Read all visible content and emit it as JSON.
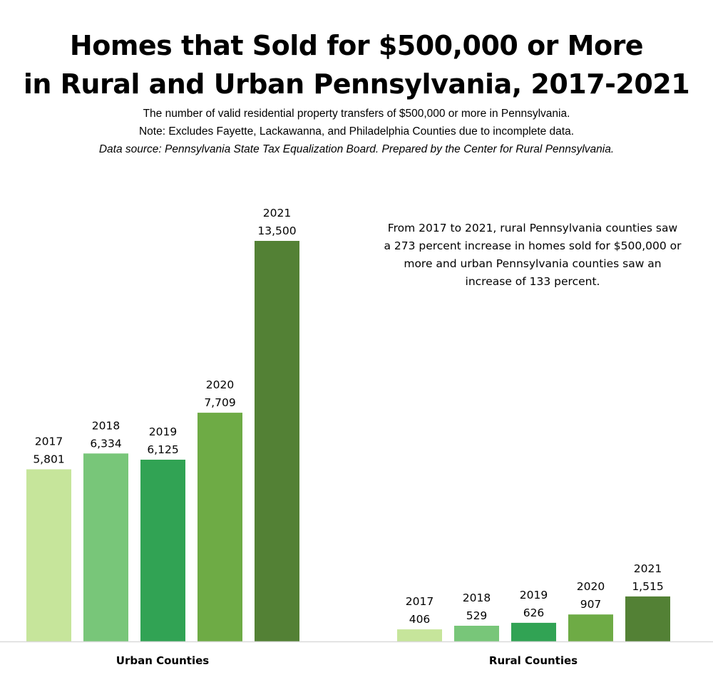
{
  "title_line1": "Homes that Sold for $500,000 or More",
  "title_line2": "in Rural and Urban Pennsylvania, 2017-2021",
  "subtitle_line1": "The number of valid residential property transfers of $500,000 or more in Pennsylvania.",
  "subtitle_line2": "Note: Excludes Fayette, Lackawanna, and Philadelphia Counties due to incomplete data.",
  "source_line": "Data source: Pennsylvania State Tax Equalization Board. Prepared by the Center for Rural Pennsylvania.",
  "annotation": "From 2017 to 2021, rural Pennsylvania counties saw a 273 percent increase in homes sold for $500,000 or more and urban Pennsylvania counties saw an increase of 133 percent.",
  "chart_data": {
    "type": "bar",
    "ylim": [
      0,
      13500
    ],
    "grid": false,
    "legend": "none",
    "colors": [
      "#c6e59b",
      "#78c679",
      "#31a354",
      "#6eab45",
      "#538135"
    ],
    "groups": [
      {
        "label": "Urban Counties",
        "bars": [
          {
            "year": "2017",
            "value": 5801,
            "value_label": "5,801"
          },
          {
            "year": "2018",
            "value": 6334,
            "value_label": "6,334"
          },
          {
            "year": "2019",
            "value": 6125,
            "value_label": "6,125"
          },
          {
            "year": "2020",
            "value": 7709,
            "value_label": "7,709"
          },
          {
            "year": "2021",
            "value": 13500,
            "value_label": "13,500"
          }
        ]
      },
      {
        "label": "Rural Counties",
        "bars": [
          {
            "year": "2017",
            "value": 406,
            "value_label": "406"
          },
          {
            "year": "2018",
            "value": 529,
            "value_label": "529"
          },
          {
            "year": "2019",
            "value": 626,
            "value_label": "626"
          },
          {
            "year": "2020",
            "value": 907,
            "value_label": "907"
          },
          {
            "year": "2021",
            "value": 1515,
            "value_label": "1,515"
          }
        ]
      }
    ]
  }
}
